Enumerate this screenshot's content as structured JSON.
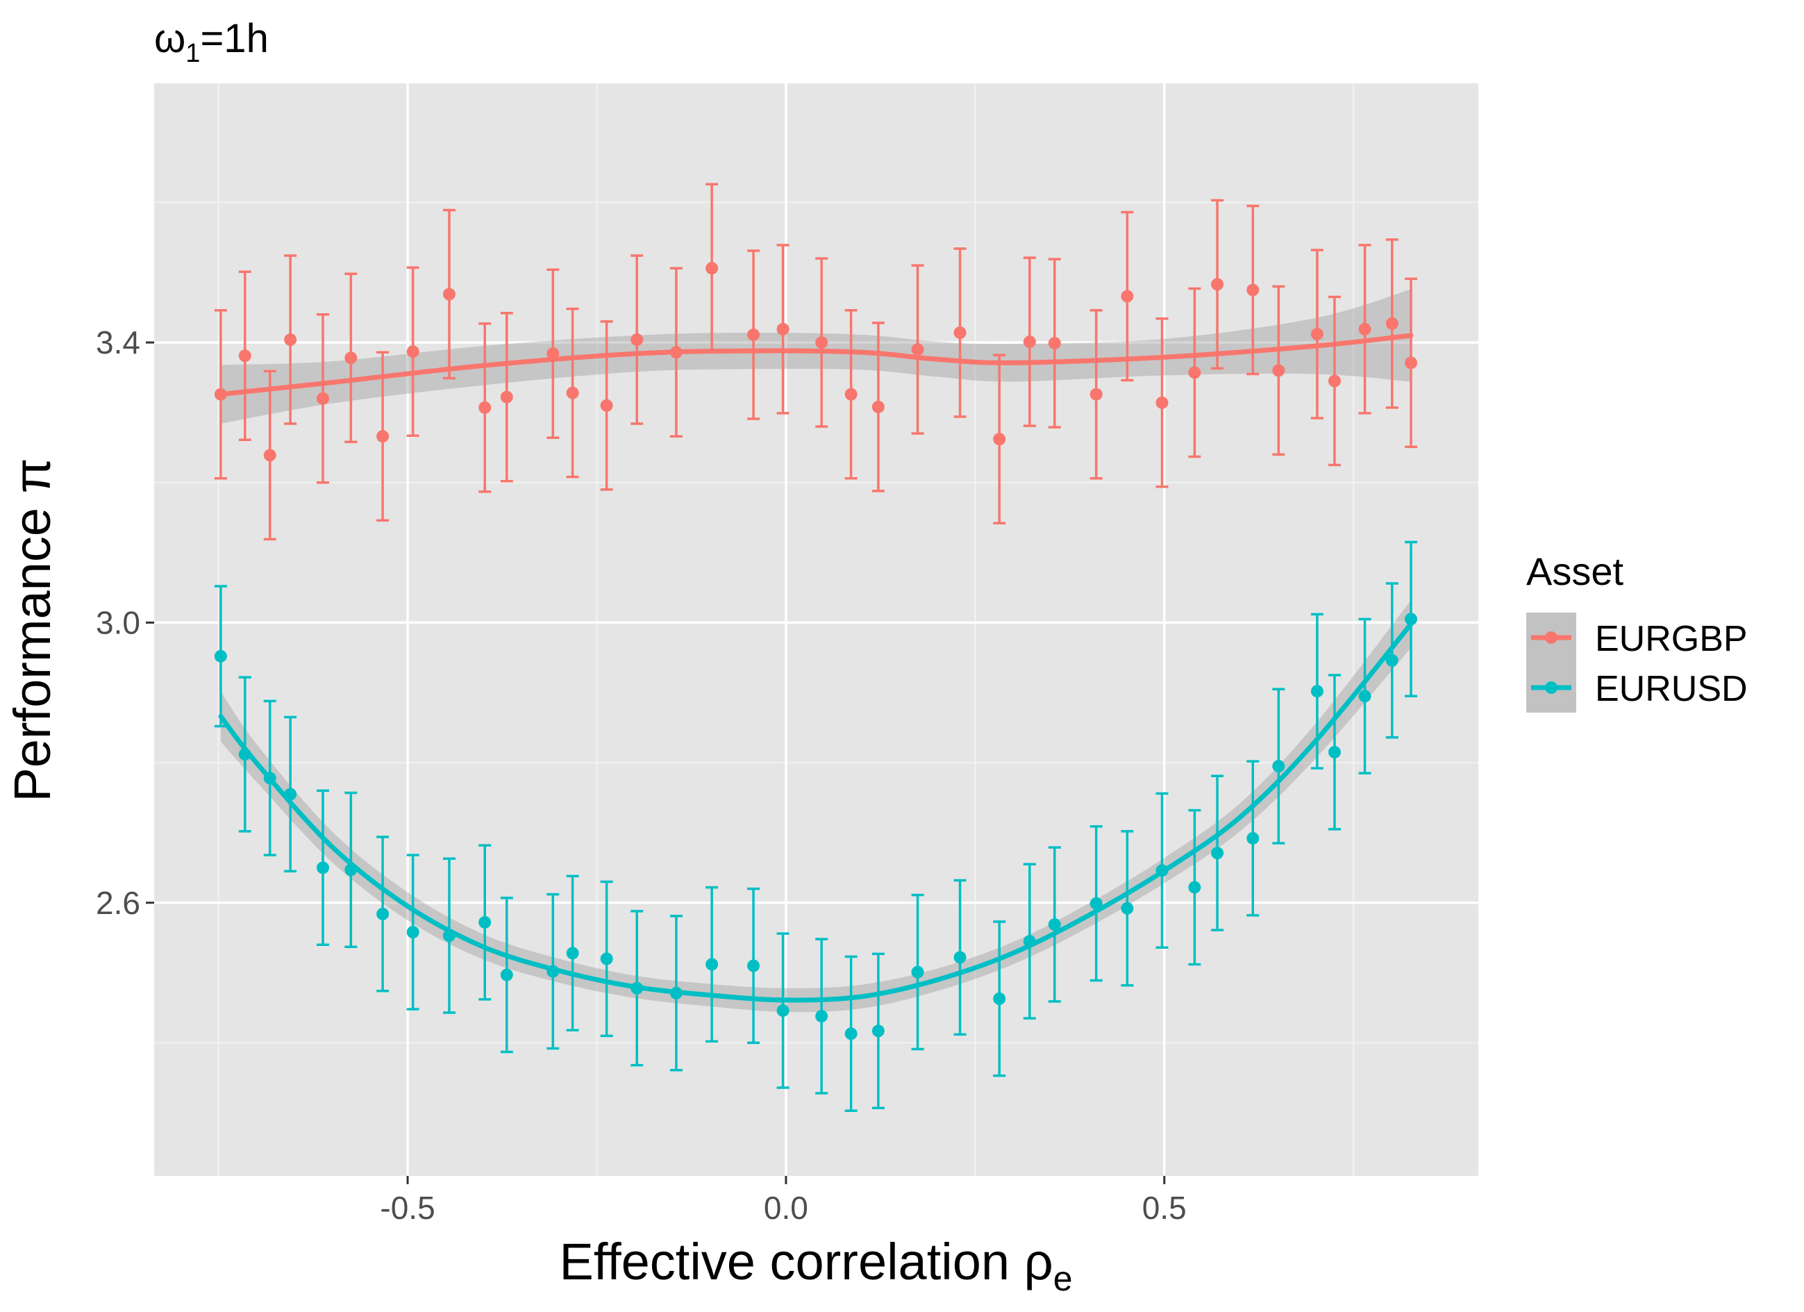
{
  "chart_data": {
    "type": "scatter",
    "title_symbol": "ω",
    "title_sub": "1",
    "title_rest": "=1h",
    "xlabel_main": "Effective correlation ",
    "xlabel_symbol": "ρ",
    "xlabel_sub": "e",
    "ylabel_main": "Performance ",
    "ylabel_symbol": "π",
    "xlim": [
      -0.835,
      0.915
    ],
    "ylim": [
      2.21,
      3.77
    ],
    "x_ticks": [
      -0.5,
      0.0,
      0.5
    ],
    "x_tick_labels": [
      "-0.5",
      "0.0",
      "0.5"
    ],
    "y_ticks": [
      2.6,
      3.0,
      3.4
    ],
    "y_tick_labels": [
      "2.6",
      "3.0",
      "3.4"
    ],
    "grid": true,
    "panel_background": "#e5e5e5",
    "legend": {
      "title": "Asset",
      "position": "right"
    },
    "series": [
      {
        "name": "EURGBP",
        "color": "#f8766d",
        "points": [
          {
            "x": -0.747,
            "y": 3.326,
            "lo": 3.206,
            "hi": 3.446
          },
          {
            "x": -0.715,
            "y": 3.381,
            "lo": 3.261,
            "hi": 3.501
          },
          {
            "x": -0.682,
            "y": 3.239,
            "lo": 3.119,
            "hi": 3.359
          },
          {
            "x": -0.655,
            "y": 3.404,
            "lo": 3.284,
            "hi": 3.524
          },
          {
            "x": -0.612,
            "y": 3.32,
            "lo": 3.2,
            "hi": 3.44
          },
          {
            "x": -0.575,
            "y": 3.378,
            "lo": 3.258,
            "hi": 3.498
          },
          {
            "x": -0.533,
            "y": 3.266,
            "lo": 3.146,
            "hi": 3.386
          },
          {
            "x": -0.493,
            "y": 3.387,
            "lo": 3.267,
            "hi": 3.507
          },
          {
            "x": -0.445,
            "y": 3.469,
            "lo": 3.349,
            "hi": 3.589
          },
          {
            "x": -0.398,
            "y": 3.307,
            "lo": 3.187,
            "hi": 3.427
          },
          {
            "x": -0.369,
            "y": 3.322,
            "lo": 3.202,
            "hi": 3.442
          },
          {
            "x": -0.308,
            "y": 3.384,
            "lo": 3.264,
            "hi": 3.504
          },
          {
            "x": -0.282,
            "y": 3.328,
            "lo": 3.208,
            "hi": 3.448
          },
          {
            "x": -0.237,
            "y": 3.31,
            "lo": 3.19,
            "hi": 3.43
          },
          {
            "x": -0.197,
            "y": 3.404,
            "lo": 3.284,
            "hi": 3.524
          },
          {
            "x": -0.145,
            "y": 3.386,
            "lo": 3.266,
            "hi": 3.506
          },
          {
            "x": -0.098,
            "y": 3.506,
            "lo": 3.386,
            "hi": 3.626
          },
          {
            "x": -0.043,
            "y": 3.411,
            "lo": 3.291,
            "hi": 3.531
          },
          {
            "x": -0.004,
            "y": 3.419,
            "lo": 3.299,
            "hi": 3.539
          },
          {
            "x": 0.047,
            "y": 3.4,
            "lo": 3.28,
            "hi": 3.52
          },
          {
            "x": 0.086,
            "y": 3.326,
            "lo": 3.206,
            "hi": 3.446
          },
          {
            "x": 0.122,
            "y": 3.308,
            "lo": 3.188,
            "hi": 3.428
          },
          {
            "x": 0.174,
            "y": 3.39,
            "lo": 3.27,
            "hi": 3.51
          },
          {
            "x": 0.23,
            "y": 3.414,
            "lo": 3.294,
            "hi": 3.534
          },
          {
            "x": 0.282,
            "y": 3.262,
            "lo": 3.142,
            "hi": 3.382
          },
          {
            "x": 0.322,
            "y": 3.401,
            "lo": 3.281,
            "hi": 3.521
          },
          {
            "x": 0.355,
            "y": 3.399,
            "lo": 3.279,
            "hi": 3.519
          },
          {
            "x": 0.41,
            "y": 3.326,
            "lo": 3.206,
            "hi": 3.446
          },
          {
            "x": 0.451,
            "y": 3.466,
            "lo": 3.346,
            "hi": 3.586
          },
          {
            "x": 0.497,
            "y": 3.314,
            "lo": 3.194,
            "hi": 3.434
          },
          {
            "x": 0.54,
            "y": 3.357,
            "lo": 3.237,
            "hi": 3.477
          },
          {
            "x": 0.57,
            "y": 3.483,
            "lo": 3.363,
            "hi": 3.603
          },
          {
            "x": 0.617,
            "y": 3.475,
            "lo": 3.355,
            "hi": 3.595
          },
          {
            "x": 0.651,
            "y": 3.36,
            "lo": 3.24,
            "hi": 3.48
          },
          {
            "x": 0.702,
            "y": 3.412,
            "lo": 3.292,
            "hi": 3.532
          },
          {
            "x": 0.725,
            "y": 3.345,
            "lo": 3.225,
            "hi": 3.465
          },
          {
            "x": 0.765,
            "y": 3.419,
            "lo": 3.299,
            "hi": 3.539
          },
          {
            "x": 0.801,
            "y": 3.427,
            "lo": 3.307,
            "hi": 3.547
          },
          {
            "x": 0.826,
            "y": 3.371,
            "lo": 3.251,
            "hi": 3.491
          }
        ],
        "smooth": [
          [
            -0.747,
            3.326
          ],
          [
            -0.6,
            3.343
          ],
          [
            -0.4,
            3.367
          ],
          [
            -0.2,
            3.384
          ],
          [
            -0.05,
            3.388
          ],
          [
            0.1,
            3.386
          ],
          [
            0.2,
            3.376
          ],
          [
            0.3,
            3.371
          ],
          [
            0.5,
            3.379
          ],
          [
            0.7,
            3.395
          ],
          [
            0.826,
            3.41
          ]
        ],
        "band_halfwidth": [
          0.042,
          0.03,
          0.028,
          0.026,
          0.026,
          0.025,
          0.025,
          0.027,
          0.026,
          0.04,
          0.066
        ]
      },
      {
        "name": "EURUSD",
        "color": "#00bfc4",
        "points": [
          {
            "x": -0.747,
            "y": 2.952,
            "lo": 2.852,
            "hi": 3.052
          },
          {
            "x": -0.715,
            "y": 2.812,
            "lo": 2.702,
            "hi": 2.922
          },
          {
            "x": -0.682,
            "y": 2.778,
            "lo": 2.668,
            "hi": 2.888
          },
          {
            "x": -0.655,
            "y": 2.755,
            "lo": 2.645,
            "hi": 2.865
          },
          {
            "x": -0.612,
            "y": 2.65,
            "lo": 2.54,
            "hi": 2.76
          },
          {
            "x": -0.575,
            "y": 2.647,
            "lo": 2.537,
            "hi": 2.757
          },
          {
            "x": -0.533,
            "y": 2.584,
            "lo": 2.474,
            "hi": 2.694
          },
          {
            "x": -0.493,
            "y": 2.558,
            "lo": 2.448,
            "hi": 2.668
          },
          {
            "x": -0.445,
            "y": 2.553,
            "lo": 2.443,
            "hi": 2.663
          },
          {
            "x": -0.398,
            "y": 2.572,
            "lo": 2.462,
            "hi": 2.682
          },
          {
            "x": -0.369,
            "y": 2.497,
            "lo": 2.387,
            "hi": 2.607
          },
          {
            "x": -0.308,
            "y": 2.502,
            "lo": 2.392,
            "hi": 2.612
          },
          {
            "x": -0.282,
            "y": 2.528,
            "lo": 2.418,
            "hi": 2.638
          },
          {
            "x": -0.237,
            "y": 2.52,
            "lo": 2.41,
            "hi": 2.63
          },
          {
            "x": -0.197,
            "y": 2.478,
            "lo": 2.368,
            "hi": 2.588
          },
          {
            "x": -0.145,
            "y": 2.471,
            "lo": 2.361,
            "hi": 2.581
          },
          {
            "x": -0.098,
            "y": 2.512,
            "lo": 2.402,
            "hi": 2.622
          },
          {
            "x": -0.043,
            "y": 2.51,
            "lo": 2.4,
            "hi": 2.62
          },
          {
            "x": -0.004,
            "y": 2.446,
            "lo": 2.336,
            "hi": 2.556
          },
          {
            "x": 0.047,
            "y": 2.438,
            "lo": 2.328,
            "hi": 2.548
          },
          {
            "x": 0.086,
            "y": 2.413,
            "lo": 2.303,
            "hi": 2.523
          },
          {
            "x": 0.122,
            "y": 2.417,
            "lo": 2.307,
            "hi": 2.527
          },
          {
            "x": 0.174,
            "y": 2.501,
            "lo": 2.391,
            "hi": 2.611
          },
          {
            "x": 0.23,
            "y": 2.522,
            "lo": 2.412,
            "hi": 2.632
          },
          {
            "x": 0.282,
            "y": 2.463,
            "lo": 2.353,
            "hi": 2.573
          },
          {
            "x": 0.322,
            "y": 2.545,
            "lo": 2.435,
            "hi": 2.655
          },
          {
            "x": 0.355,
            "y": 2.569,
            "lo": 2.459,
            "hi": 2.679
          },
          {
            "x": 0.41,
            "y": 2.599,
            "lo": 2.489,
            "hi": 2.709
          },
          {
            "x": 0.451,
            "y": 2.592,
            "lo": 2.482,
            "hi": 2.702
          },
          {
            "x": 0.497,
            "y": 2.646,
            "lo": 2.536,
            "hi": 2.756
          },
          {
            "x": 0.54,
            "y": 2.622,
            "lo": 2.512,
            "hi": 2.732
          },
          {
            "x": 0.57,
            "y": 2.671,
            "lo": 2.561,
            "hi": 2.781
          },
          {
            "x": 0.617,
            "y": 2.692,
            "lo": 2.582,
            "hi": 2.802
          },
          {
            "x": 0.651,
            "y": 2.795,
            "lo": 2.685,
            "hi": 2.905
          },
          {
            "x": 0.702,
            "y": 2.902,
            "lo": 2.792,
            "hi": 3.012
          },
          {
            "x": 0.725,
            "y": 2.815,
            "lo": 2.705,
            "hi": 2.925
          },
          {
            "x": 0.765,
            "y": 2.895,
            "lo": 2.785,
            "hi": 3.005
          },
          {
            "x": 0.801,
            "y": 2.946,
            "lo": 2.836,
            "hi": 3.056
          },
          {
            "x": 0.826,
            "y": 3.005,
            "lo": 2.895,
            "hi": 3.115
          }
        ],
        "smooth": [
          [
            -0.747,
            2.866
          ],
          [
            -0.7,
            2.8
          ],
          [
            -0.6,
            2.68
          ],
          [
            -0.5,
            2.595
          ],
          [
            -0.4,
            2.537
          ],
          [
            -0.3,
            2.503
          ],
          [
            -0.2,
            2.48
          ],
          [
            -0.1,
            2.468
          ],
          [
            0.0,
            2.461
          ],
          [
            0.1,
            2.466
          ],
          [
            0.2,
            2.49
          ],
          [
            0.3,
            2.528
          ],
          [
            0.4,
            2.582
          ],
          [
            0.5,
            2.646
          ],
          [
            0.6,
            2.722
          ],
          [
            0.7,
            2.831
          ],
          [
            0.826,
            2.998
          ]
        ],
        "band_halfwidth": [
          0.036,
          0.027,
          0.022,
          0.02,
          0.018,
          0.017,
          0.016,
          0.016,
          0.017,
          0.017,
          0.016,
          0.016,
          0.017,
          0.018,
          0.02,
          0.025,
          0.034
        ]
      }
    ]
  }
}
